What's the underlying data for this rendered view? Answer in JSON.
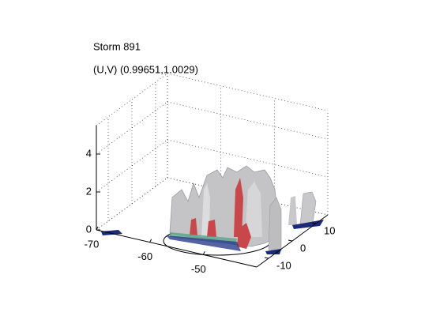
{
  "chart_data": {
    "type": "isosurface3d",
    "title": "Storm 891",
    "subtitle": "(U,V) (0.99651,1.0029)",
    "xlim": [
      -70,
      -40
    ],
    "xticks": [
      -70,
      -60,
      -50
    ],
    "ylim": [
      -15,
      15
    ],
    "yticks": [
      -10,
      0,
      10
    ],
    "zlim": [
      0,
      5.5
    ],
    "zticks": [
      0,
      2,
      4
    ],
    "grid": true
  }
}
